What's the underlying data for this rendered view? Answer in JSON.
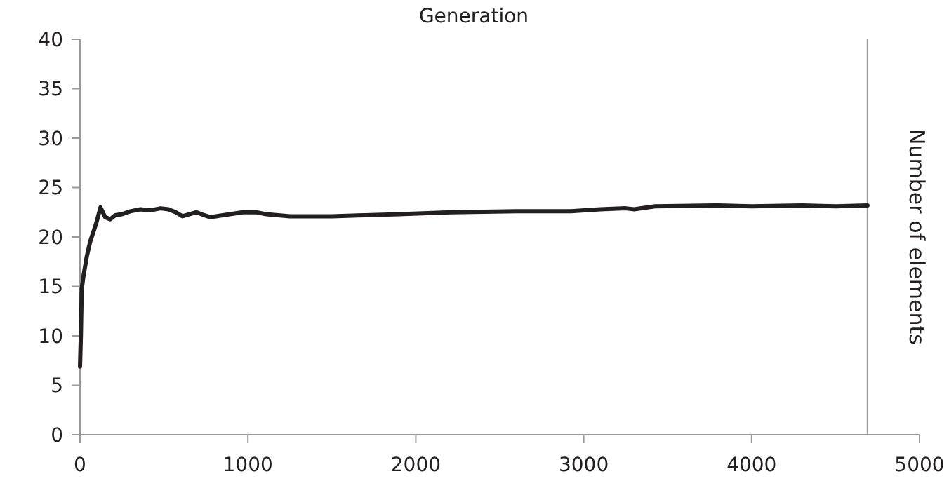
{
  "chart_data": {
    "type": "line",
    "xlabel": "Generation",
    "ylabel": "Number of elements",
    "xlim": [
      0,
      5000
    ],
    "ylim": [
      0,
      40
    ],
    "xticks": [
      0,
      1000,
      2000,
      3000,
      4000,
      5000
    ],
    "yticks": [
      0,
      5,
      10,
      15,
      20,
      25,
      30,
      35,
      40
    ],
    "grid": false,
    "ref_lines": [
      {
        "axis": "x",
        "value": 4690,
        "color": "#999999"
      }
    ],
    "series": [
      {
        "color": "#231f20",
        "x": [
          0,
          5,
          10,
          20,
          40,
          60,
          95,
          122,
          150,
          180,
          210,
          248,
          300,
          360,
          420,
          480,
          527,
          570,
          610,
          650,
          694,
          740,
          777,
          850,
          970,
          1050,
          1110,
          1250,
          1500,
          1700,
          1900,
          2210,
          2600,
          2924,
          3100,
          3250,
          3300,
          3425,
          3800,
          4000,
          4300,
          4500,
          4690
        ],
        "values": [
          6.9,
          10,
          14.7,
          16,
          18,
          19.5,
          21.3,
          23,
          22,
          21.8,
          22.2,
          22.3,
          22.6,
          22.8,
          22.7,
          22.9,
          22.8,
          22.5,
          22.1,
          22.3,
          22.5,
          22.2,
          22,
          22.2,
          22.5,
          22.5,
          22.3,
          22.1,
          22.1,
          22.2,
          22.3,
          22.5,
          22.6,
          22.6,
          22.8,
          22.9,
          22.8,
          23.1,
          23.2,
          23.1,
          23.2,
          23.1,
          23.2
        ]
      }
    ]
  }
}
